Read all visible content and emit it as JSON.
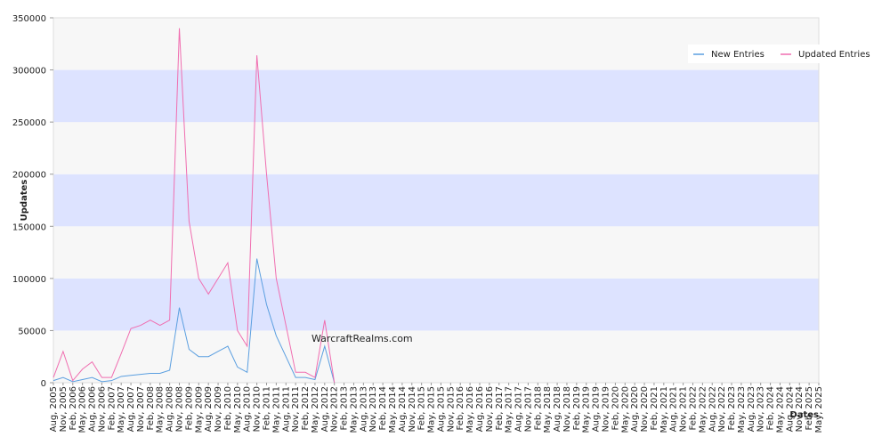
{
  "chart_data": {
    "type": "line",
    "ylabel": "Updates",
    "xlabel": "Dates",
    "watermark": "WarcraftRealms.com",
    "categories": [
      "Aug, 2005",
      "Nov, 2005",
      "Feb, 2006",
      "May, 2006",
      "Aug, 2006",
      "Nov, 2006",
      "Feb, 2007",
      "May, 2007",
      "Aug, 2007",
      "Nov, 2007",
      "Feb, 2008",
      "May, 2008",
      "Aug, 2008",
      "Nov, 2008",
      "Feb, 2009",
      "May, 2009",
      "Aug, 2009",
      "Nov, 2009",
      "Feb, 2010",
      "May, 2010",
      "Aug, 2010",
      "Nov, 2010",
      "Feb, 2011",
      "May, 2011",
      "Aug, 2011",
      "Nov, 2011",
      "Feb, 2012",
      "May, 2012",
      "Aug, 2012",
      "Nov, 2012",
      "Feb, 2013",
      "May, 2013",
      "Aug, 2013",
      "Nov, 2013",
      "Feb, 2014",
      "May, 2014",
      "Aug, 2014",
      "Nov, 2014",
      "Feb, 2015",
      "May, 2015",
      "Aug, 2015",
      "Nov, 2015",
      "Feb, 2016",
      "May, 2016",
      "Aug, 2016",
      "Nov, 2016",
      "Feb, 2017",
      "May, 2017",
      "Aug, 2017",
      "Nov, 2017",
      "Feb, 2018",
      "May, 2018",
      "Aug, 2018",
      "Nov, 2018",
      "Feb, 2019",
      "May, 2019",
      "Aug, 2019",
      "Nov, 2019",
      "Feb, 2020",
      "May, 2020",
      "Aug, 2020",
      "Nov, 2020",
      "Feb, 2021",
      "May, 2021",
      "Aug, 2021",
      "Nov, 2021",
      "Feb, 2022",
      "May, 2022",
      "Aug, 2022",
      "Nov, 2022",
      "Feb, 2023",
      "May, 2023",
      "Aug, 2023",
      "Nov, 2023",
      "Feb, 2024",
      "May, 2024",
      "Aug, 2024",
      "Nov, 2024",
      "Feb, 2025",
      "May, 2025"
    ],
    "series": [
      {
        "name": "New Entries",
        "color": "#5b9fe0",
        "values": [
          2000,
          5000,
          1000,
          3000,
          5000,
          1000,
          2000,
          6000,
          7000,
          8000,
          9000,
          9000,
          12000,
          72000,
          32000,
          25000,
          25000,
          30000,
          35000,
          15000,
          10000,
          119000,
          75000,
          45000,
          25000,
          5000,
          5000,
          3000,
          35000,
          0,
          null,
          null,
          null,
          null,
          null,
          null,
          null,
          null,
          null,
          null,
          null,
          null,
          null,
          null,
          null,
          null,
          null,
          null,
          null,
          null,
          null,
          null,
          null,
          null,
          null,
          null,
          null,
          null,
          null,
          null,
          null,
          null,
          null,
          null,
          null,
          null,
          null,
          null,
          null,
          null,
          null,
          null,
          null,
          null,
          null,
          null,
          null,
          null,
          null,
          null
        ]
      },
      {
        "name": "Updated Entries",
        "color": "#f06eb0",
        "values": [
          5000,
          30000,
          2000,
          13000,
          20000,
          5000,
          5000,
          28000,
          52000,
          55000,
          60000,
          55000,
          60000,
          340000,
          155000,
          100000,
          85000,
          100000,
          115000,
          50000,
          35000,
          314000,
          200000,
          100000,
          55000,
          10000,
          10000,
          5000,
          60000,
          0,
          null,
          null,
          null,
          null,
          null,
          null,
          null,
          null,
          null,
          null,
          null,
          null,
          null,
          null,
          null,
          null,
          null,
          null,
          null,
          null,
          null,
          null,
          null,
          null,
          null,
          null,
          null,
          null,
          null,
          null,
          null,
          null,
          null,
          null,
          null,
          null,
          null,
          null,
          null,
          null,
          null,
          null,
          null,
          null,
          null,
          null,
          null,
          null,
          null,
          null
        ]
      }
    ],
    "ylim": [
      0,
      350000
    ],
    "yticks": [
      0,
      50000,
      100000,
      150000,
      200000,
      250000,
      300000,
      350000
    ],
    "bands": [
      "#f7f7f7",
      "#dde3ff"
    ],
    "legend": "top-right"
  }
}
